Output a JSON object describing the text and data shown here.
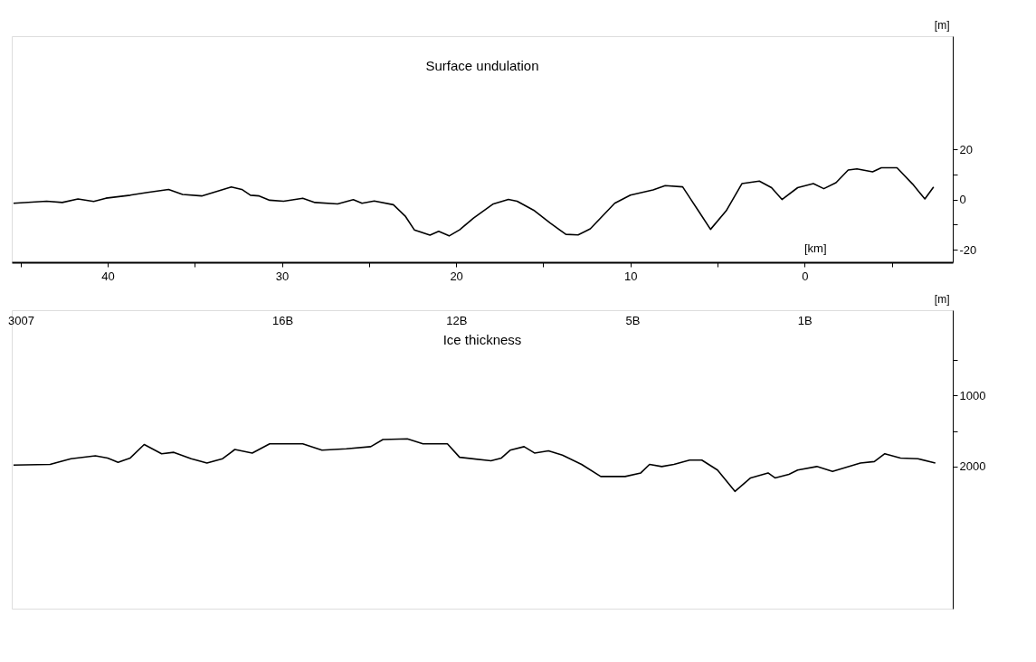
{
  "chart_data": [
    {
      "type": "line",
      "title": "Surface undulation",
      "xlabel": "[km]",
      "ylabel": "[m]",
      "x": [
        45.4,
        43.5,
        42.6,
        41.7,
        40.8,
        40.1,
        38.7,
        37.7,
        36.5,
        35.7,
        34.6,
        32.9,
        32.3,
        31.8,
        31.3,
        30.7,
        29.9,
        28.8,
        28.1,
        26.8,
        25.9,
        25.4,
        24.7,
        23.6,
        22.9,
        22.4,
        21.5,
        21.0,
        20.4,
        19.8,
        19.0,
        17.9,
        17.0,
        16.5,
        15.5,
        14.6,
        13.7,
        13.0,
        12.3,
        10.9,
        10.0,
        8.7,
        8.0,
        7.0,
        6.1,
        5.4,
        4.5,
        3.6,
        2.6,
        1.9,
        1.3,
        0.4,
        -0.5,
        -1.1,
        -1.8,
        -2.5,
        -3.0,
        -3.9,
        -4.4,
        -5.3,
        -6.2,
        -6.9,
        -7.4
      ],
      "series": [
        {
          "color": "#000000",
          "values": [
            -1.5,
            -0.7,
            -1.2,
            0.2,
            -0.8,
            0.5,
            1.7,
            2.8,
            4.0,
            2.0,
            1.4,
            5.0,
            4.0,
            1.7,
            1.4,
            -0.3,
            -0.7,
            0.5,
            -1.2,
            -1.8,
            -0.1,
            -1.5,
            -0.6,
            -2.1,
            -6.8,
            -12.1,
            -14.2,
            -12.7,
            -14.5,
            -12.1,
            -7.4,
            -1.9,
            0.0,
            -0.7,
            -4.5,
            -9.4,
            -13.9,
            -14.1,
            -11.7,
            -1.5,
            1.7,
            3.8,
            5.5,
            5.0,
            -4.5,
            -11.9,
            -4.5,
            6.3,
            7.3,
            4.7,
            0.0,
            4.7,
            6.3,
            4.3,
            6.7,
            11.7,
            12.2,
            11.0,
            12.6,
            12.6,
            6.1,
            0.2,
            5.0
          ]
        }
      ],
      "xlim": [
        45.5,
        -8.5
      ],
      "xticks": [
        {
          "value": 45,
          "label": null
        },
        40,
        {
          "value": 35,
          "label": null
        },
        30,
        {
          "value": 25,
          "label": null
        },
        20,
        {
          "value": 15,
          "label": null
        },
        10,
        {
          "value": 5,
          "label": null
        },
        0,
        {
          "value": -5,
          "label": null
        }
      ],
      "ylim": [
        -25,
        65
      ],
      "yticks": [
        -20,
        {
          "value": -10,
          "label": null
        },
        0,
        {
          "value": 10,
          "label": null
        },
        20
      ]
    },
    {
      "type": "line",
      "title": "Ice thickness",
      "ylabel": "[m]",
      "tick_labels": "y",
      "x": [
        45.4,
        43.3,
        42.1,
        40.7,
        40.0,
        39.4,
        38.7,
        37.9,
        36.9,
        36.2,
        35.2,
        34.3,
        33.4,
        32.7,
        31.7,
        30.7,
        28.8,
        27.7,
        26.3,
        24.9,
        24.2,
        22.8,
        21.9,
        20.5,
        19.8,
        18.0,
        17.4,
        16.9,
        16.1,
        15.5,
        14.7,
        13.9,
        12.8,
        11.7,
        10.3,
        9.4,
        8.9,
        8.2,
        7.5,
        6.6,
        5.9,
        5.0,
        4.0,
        3.1,
        2.1,
        1.7,
        0.9,
        0.4,
        -0.7,
        -1.6,
        -3.2,
        -4.0,
        -4.6,
        -5.5,
        -6.5,
        -7.5
      ],
      "series": [
        {
          "color": "#000000",
          "values": [
            1980,
            1970,
            1890,
            1850,
            1880,
            1940,
            1880,
            1690,
            1820,
            1800,
            1890,
            1950,
            1890,
            1760,
            1810,
            1680,
            1680,
            1770,
            1750,
            1720,
            1620,
            1610,
            1680,
            1680,
            1870,
            1920,
            1880,
            1770,
            1720,
            1810,
            1780,
            1840,
            1970,
            2140,
            2140,
            2090,
            1970,
            2000,
            1970,
            1910,
            1910,
            2050,
            2350,
            2160,
            2090,
            2160,
            2110,
            2050,
            2000,
            2070,
            1950,
            1930,
            1820,
            1880,
            1890,
            1950
          ]
        }
      ],
      "xlim": [
        45.5,
        -8.5
      ],
      "annotations": [
        "3007",
        "16B",
        "12B",
        "5B",
        "1B"
      ],
      "ylim": [
        4000,
        -200
      ],
      "yticks": [
        {
          "value": 500,
          "label": null
        },
        1000,
        {
          "value": 1500,
          "label": null
        },
        2000
      ]
    }
  ]
}
